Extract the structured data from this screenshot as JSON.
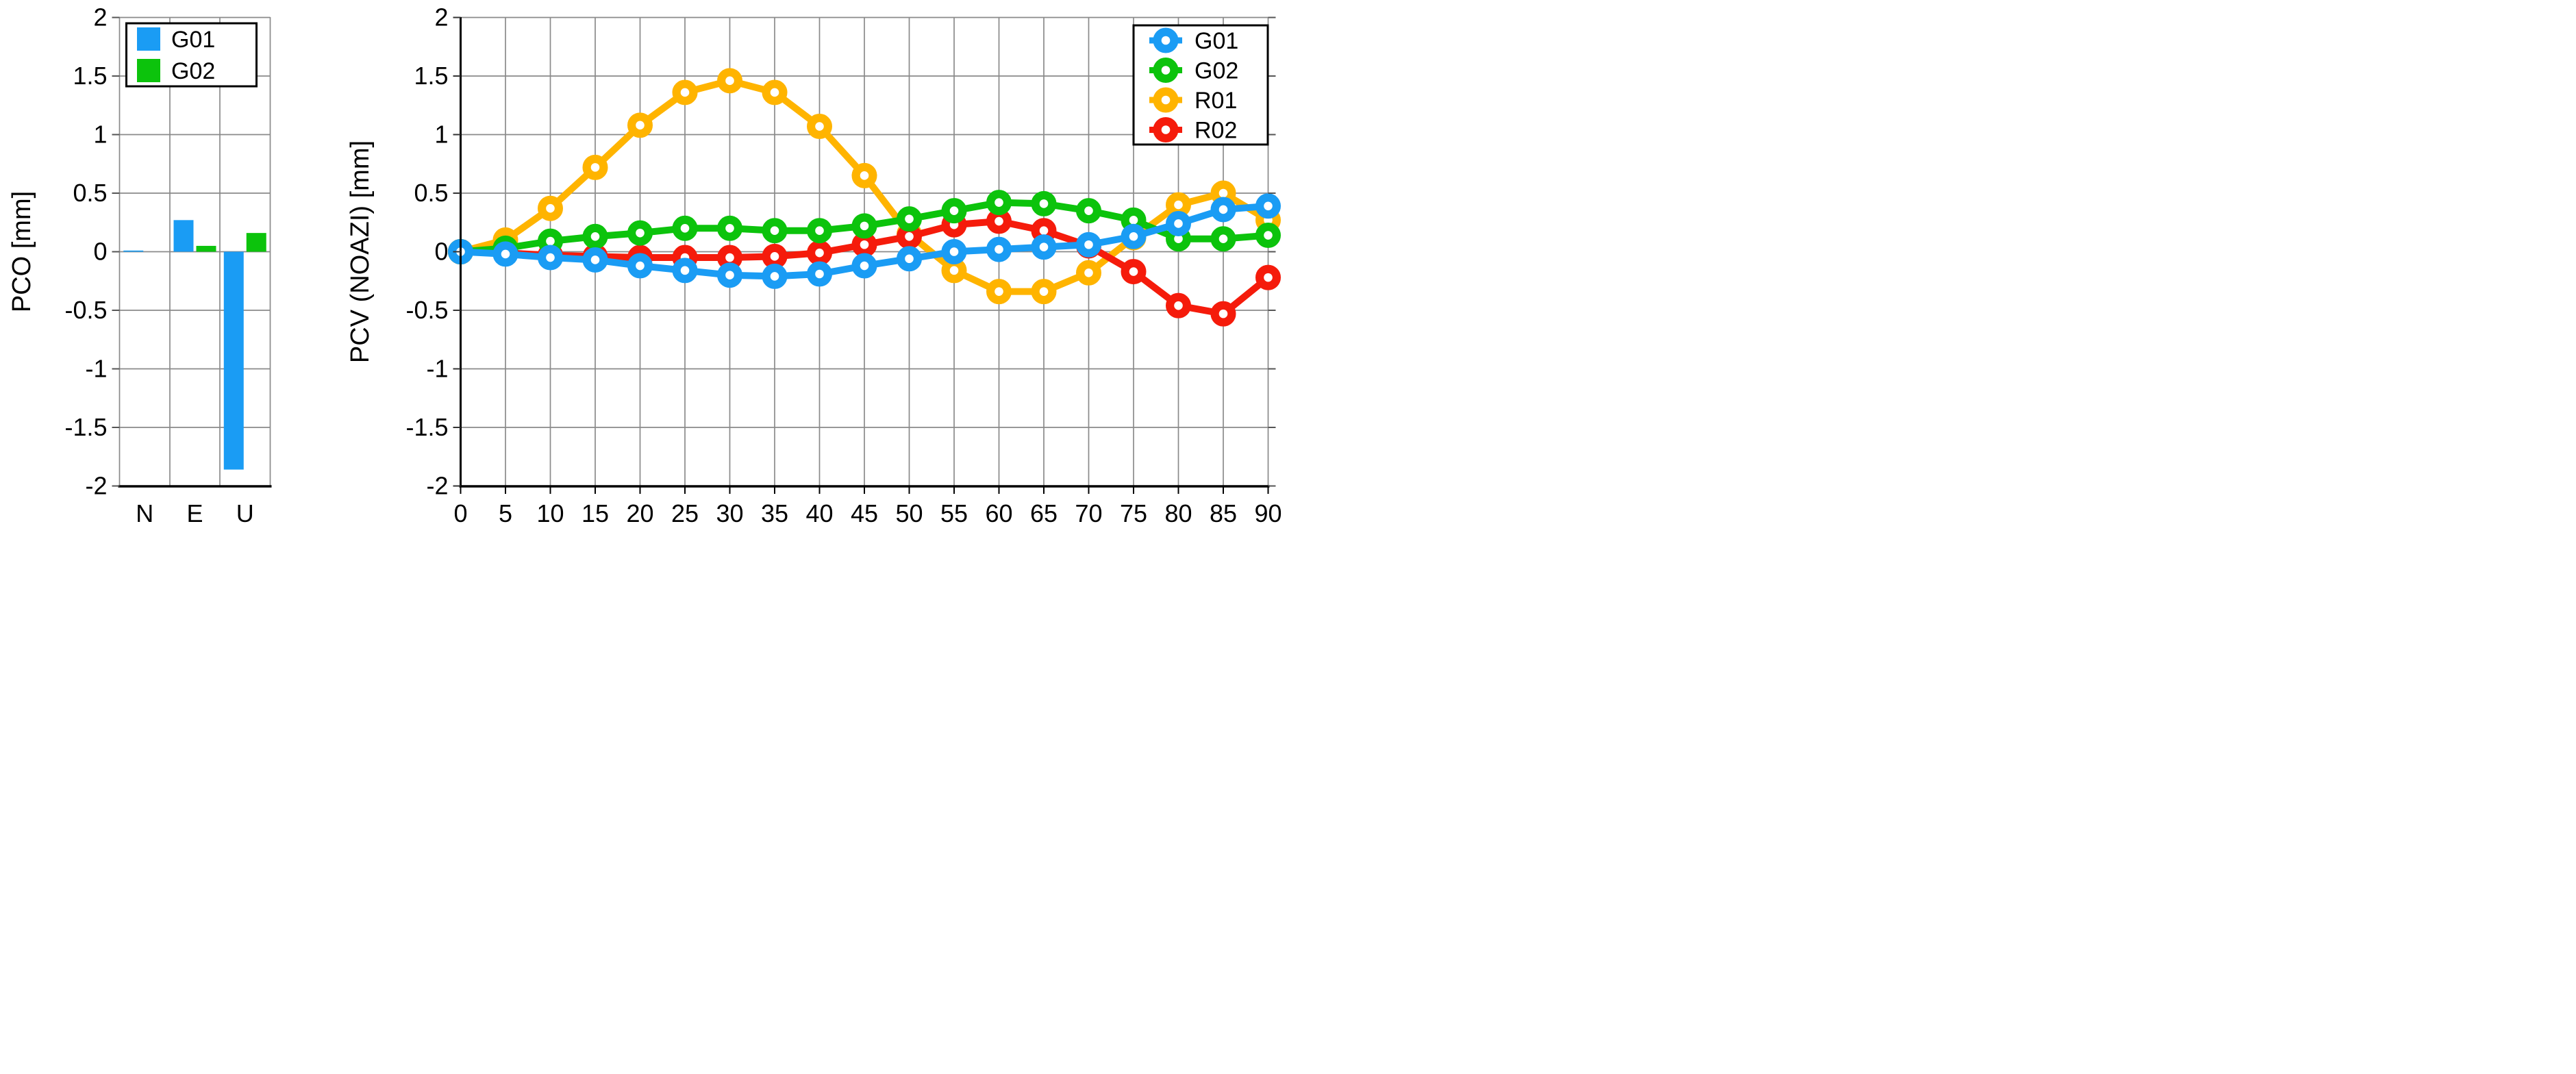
{
  "colors": {
    "background": "#ffffff",
    "grid": "#8a8a8a",
    "axis": "#000000",
    "text": "#000000",
    "g01_blue": "#1a9cf4",
    "g02_green": "#0cc30c",
    "r01_orange": "#ffb400",
    "r02_red": "#f51b0b"
  },
  "chart_data": [
    {
      "type": "bar",
      "title": "",
      "xlabel": "",
      "ylabel": "PCO [mm]",
      "categories": [
        "N",
        "E",
        "U"
      ],
      "series": [
        {
          "name": "G01",
          "color": "#1a9cf4",
          "values": [
            0.01,
            0.27,
            -1.86
          ]
        },
        {
          "name": "G02",
          "color": "#0cc30c",
          "values": [
            0.0,
            0.05,
            0.16
          ]
        }
      ],
      "ylim": [
        -2,
        2
      ],
      "yticks": [
        2,
        1.5,
        1,
        0.5,
        0,
        -0.5,
        -1,
        -1.5,
        -2
      ],
      "yticklabels": [
        "2",
        "1.5",
        "1",
        "0.5",
        "0",
        "-0.5",
        "-1",
        "-1.5",
        "-2"
      ],
      "grid": true,
      "legend_position": "top-left"
    },
    {
      "type": "line",
      "title": "",
      "xlabel": "",
      "ylabel": "PCV (NOAZI) [mm]",
      "x": [
        0,
        5,
        10,
        15,
        20,
        25,
        30,
        35,
        40,
        45,
        50,
        55,
        60,
        65,
        70,
        75,
        80,
        85,
        90
      ],
      "xticklabels": [
        "0",
        "5",
        "10",
        "15",
        "20",
        "25",
        "30",
        "35",
        "40",
        "45",
        "50",
        "55",
        "60",
        "65",
        "70",
        "75",
        "80",
        "85",
        "90"
      ],
      "xlim": [
        0,
        90
      ],
      "ylim": [
        -2,
        2
      ],
      "yticks": [
        2,
        1.5,
        1,
        0.5,
        0,
        -0.5,
        -1,
        -1.5,
        -2
      ],
      "yticklabels": [
        "2",
        "1.5",
        "1",
        "0.5",
        "0",
        "-0.5",
        "-1",
        "-1.5",
        "-2"
      ],
      "grid": true,
      "marker": "open-circle",
      "legend_position": "top-right",
      "draw_order": [
        "R01",
        "R02",
        "G02",
        "G01"
      ],
      "series": [
        {
          "name": "G01",
          "color": "#1a9cf4",
          "values": [
            0.0,
            -0.02,
            -0.05,
            -0.07,
            -0.12,
            -0.16,
            -0.2,
            -0.21,
            -0.19,
            -0.12,
            -0.06,
            0.0,
            0.02,
            0.04,
            0.06,
            0.13,
            0.24,
            0.36,
            0.39
          ]
        },
        {
          "name": "G02",
          "color": "#0cc30c",
          "values": [
            0.0,
            0.03,
            0.09,
            0.13,
            0.16,
            0.2,
            0.2,
            0.18,
            0.18,
            0.22,
            0.28,
            0.35,
            0.42,
            0.41,
            0.35,
            0.27,
            0.11,
            0.11,
            0.14
          ]
        },
        {
          "name": "R01",
          "color": "#ffb400",
          "values": [
            0.0,
            0.1,
            0.37,
            0.72,
            1.08,
            1.36,
            1.46,
            1.36,
            1.07,
            0.65,
            0.15,
            -0.16,
            -0.34,
            -0.34,
            -0.18,
            0.12,
            0.4,
            0.5,
            0.27
          ]
        },
        {
          "name": "R02",
          "color": "#f51b0b",
          "values": [
            0.0,
            -0.01,
            -0.03,
            -0.04,
            -0.05,
            -0.05,
            -0.05,
            -0.04,
            -0.01,
            0.06,
            0.13,
            0.23,
            0.26,
            0.18,
            0.05,
            -0.17,
            -0.46,
            -0.53,
            -0.22
          ]
        }
      ]
    }
  ]
}
